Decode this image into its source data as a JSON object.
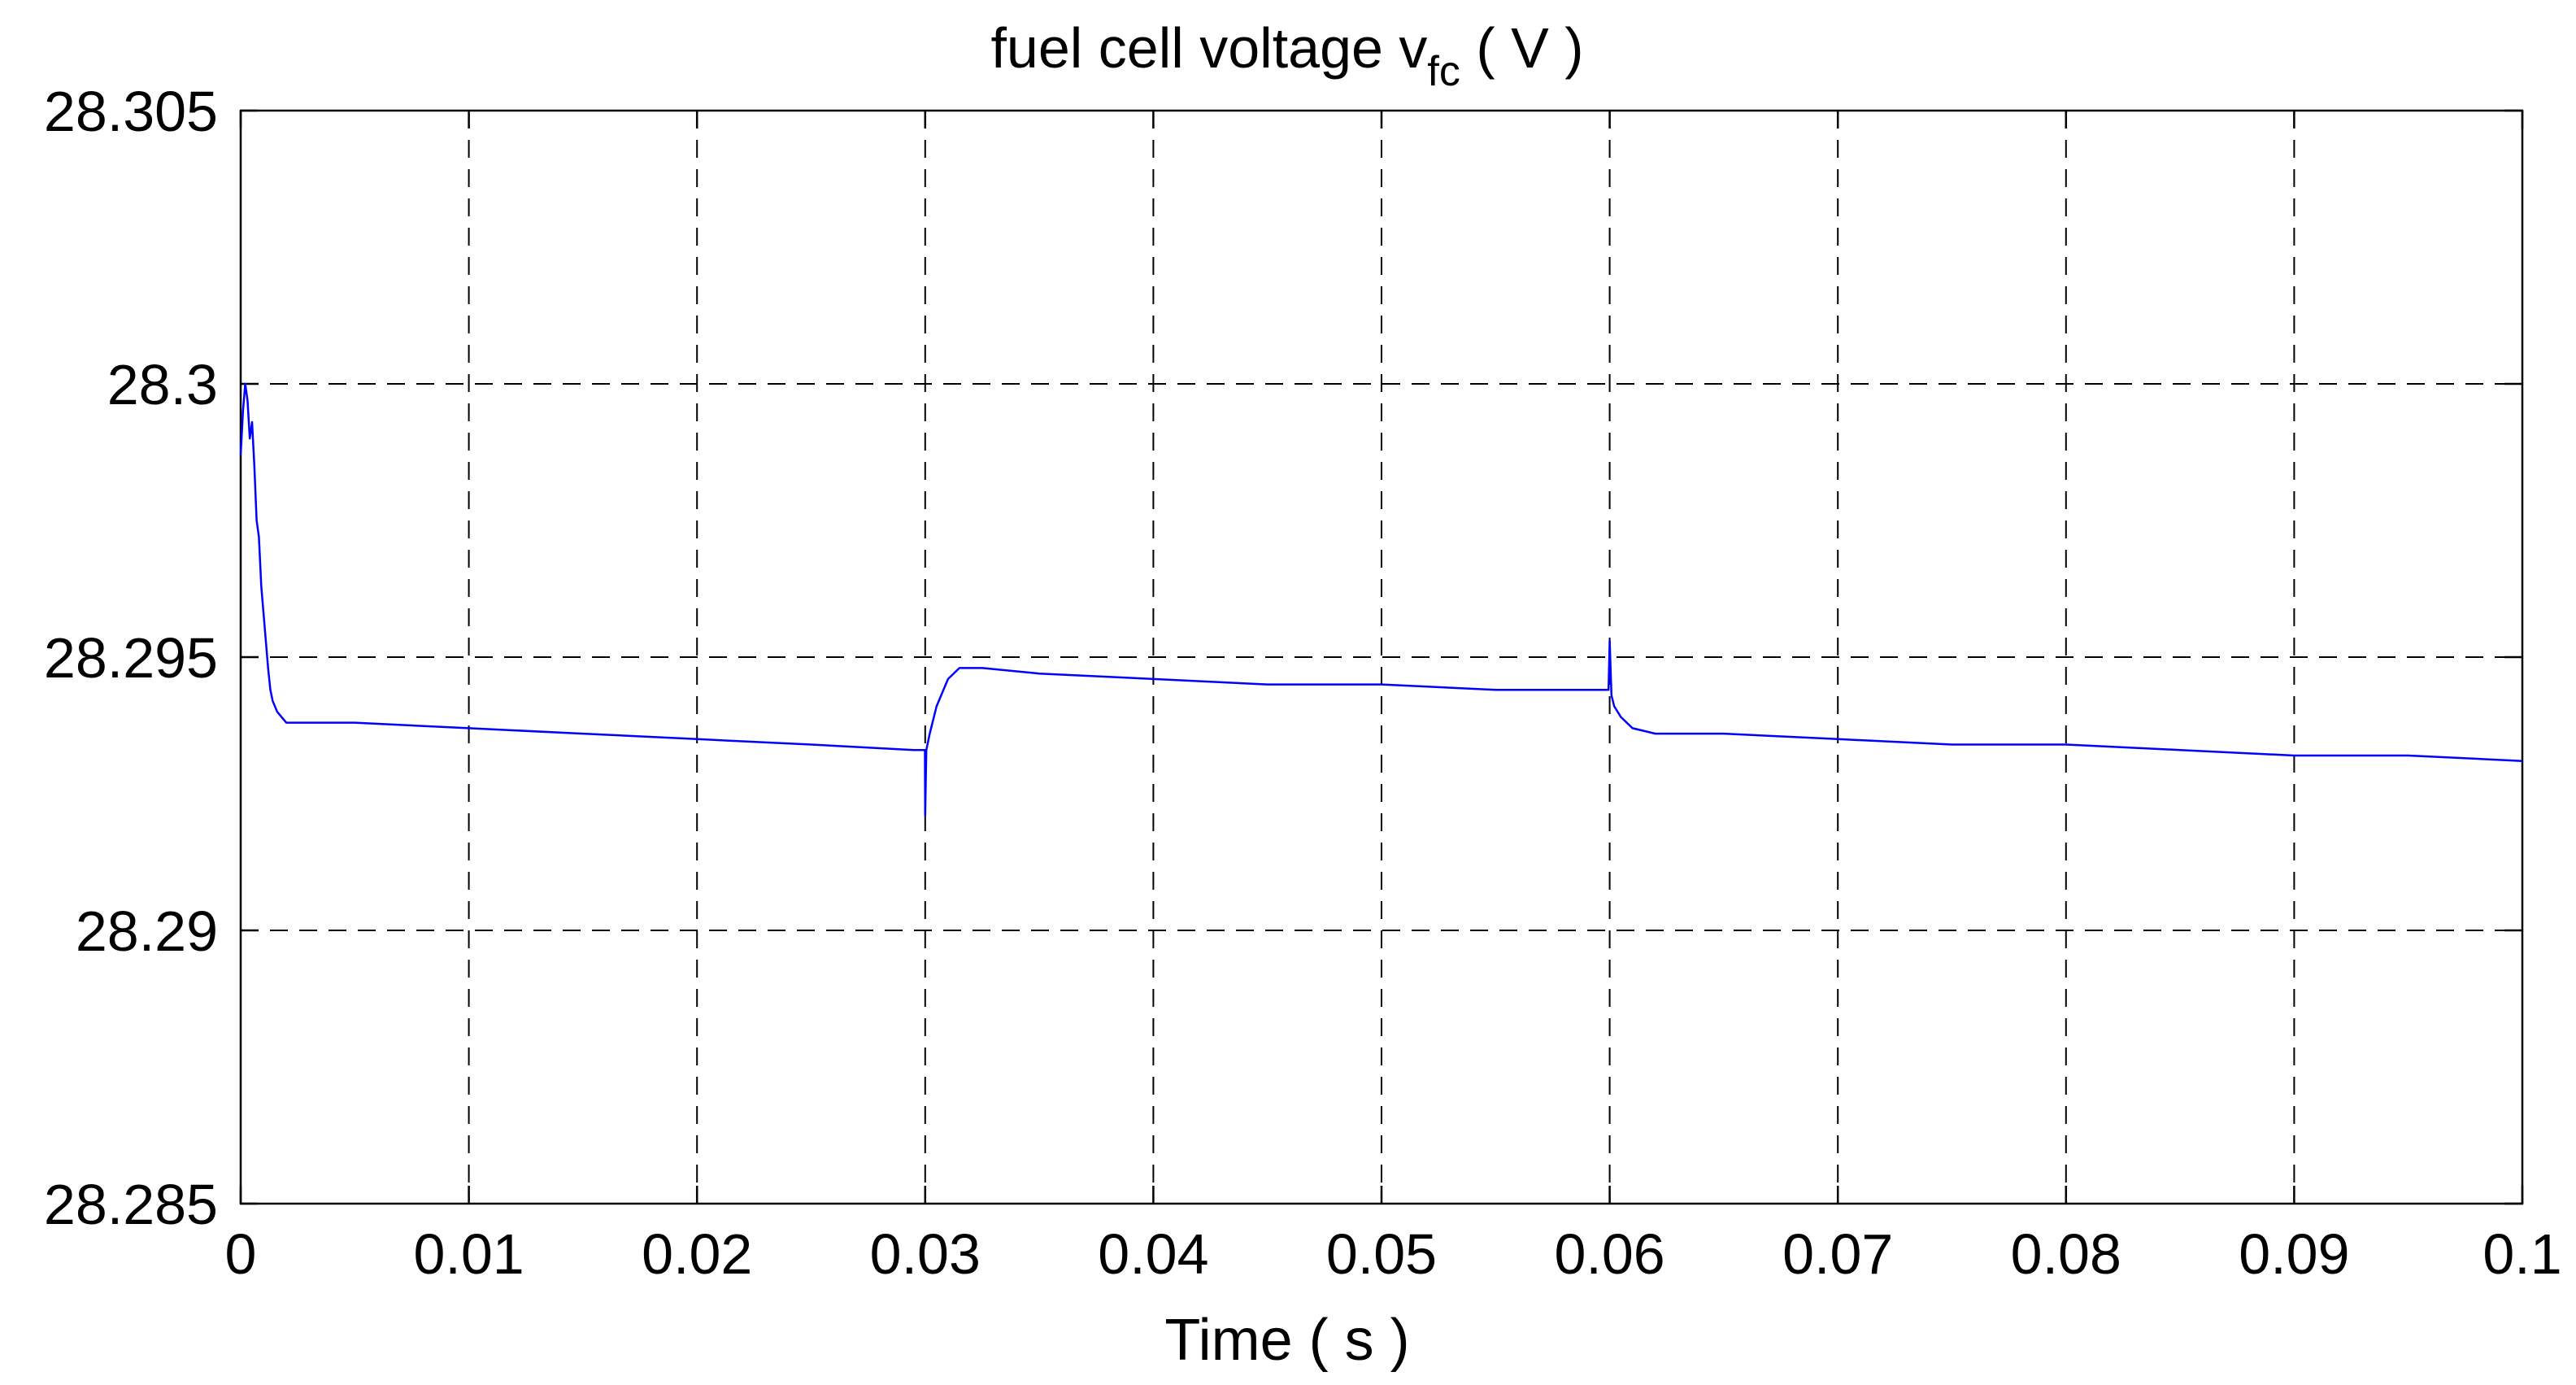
{
  "chart_data": {
    "type": "line",
    "title": {
      "prefix": "fuel cell voltage  v",
      "subscript": "fc",
      "suffix": " ( V )"
    },
    "xlabel": "Time ( s )",
    "ylabel": "",
    "xlim": [
      0,
      0.1
    ],
    "ylim": [
      28.285,
      28.305
    ],
    "xticks": [
      0,
      0.01,
      0.02,
      0.03,
      0.04,
      0.05,
      0.06,
      0.07,
      0.08,
      0.09,
      0.1
    ],
    "xtick_labels": [
      "0",
      "0.01",
      "0.02",
      "0.03",
      "0.04",
      "0.05",
      "0.06",
      "0.07",
      "0.08",
      "0.09",
      "0.1"
    ],
    "yticks": [
      28.305,
      28.3,
      28.295,
      28.29,
      28.285
    ],
    "ytick_labels": [
      "28.305",
      "28.3",
      "28.295",
      "28.29",
      "28.285"
    ],
    "grid": true,
    "series": [
      {
        "color": "#0000ff",
        "x": [
          0,
          0.0001,
          0.0002,
          0.0003,
          0.0004,
          0.0005,
          0.0006,
          0.0007,
          0.0008,
          0.0009,
          0.001,
          0.0011,
          0.0012,
          0.0013,
          0.0014,
          0.0016,
          0.0018,
          0.002,
          0.0025,
          0.003,
          0.005,
          0.01,
          0.015,
          0.02,
          0.025,
          0.0295,
          0.02999,
          0.03,
          0.03005,
          0.0302,
          0.0305,
          0.031,
          0.0315,
          0.032,
          0.0325,
          0.035,
          0.04,
          0.045,
          0.05,
          0.055,
          0.0598,
          0.05995,
          0.06,
          0.06008,
          0.0602,
          0.0605,
          0.061,
          0.062,
          0.065,
          0.07,
          0.075,
          0.08,
          0.085,
          0.09,
          0.095,
          0.1
        ],
        "y": [
          28.2987,
          28.2995,
          28.3,
          28.2997,
          28.299,
          28.2993,
          28.2985,
          28.2975,
          28.2972,
          28.2963,
          28.2958,
          28.2953,
          28.2948,
          28.2944,
          28.2942,
          28.294,
          28.2939,
          28.2938,
          28.2938,
          28.2938,
          28.2938,
          28.2937,
          28.2936,
          28.2935,
          28.2934,
          28.2933,
          28.2933,
          28.2921,
          28.2933,
          28.2936,
          28.2941,
          28.2946,
          28.2948,
          28.2948,
          28.2948,
          28.2947,
          28.2946,
          28.2945,
          28.2945,
          28.2944,
          28.2944,
          28.2944,
          28.2953,
          28.2943,
          28.2941,
          28.2939,
          28.2937,
          28.2936,
          28.2936,
          28.2935,
          28.2934,
          28.2934,
          28.2933,
          28.2932,
          28.2932,
          28.2931
        ]
      }
    ]
  }
}
